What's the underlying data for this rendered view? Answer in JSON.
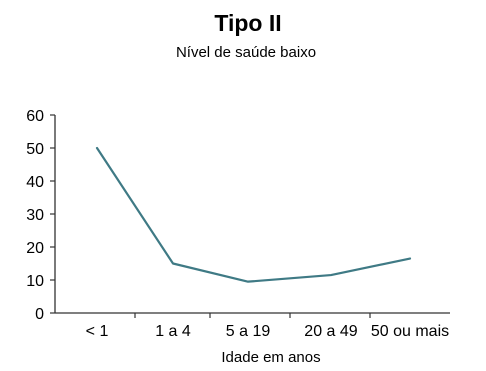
{
  "chart_data": {
    "type": "line",
    "title": "Tipo II",
    "subtitle": "Nível de saúde baixo",
    "xlabel": "Idade em anos",
    "ylabel": "",
    "categories": [
      "< 1",
      "1 a 4",
      "5 a 19",
      "20 a 49",
      "50 ou mais"
    ],
    "series": [
      {
        "values": [
          50,
          15,
          9.5,
          11.5,
          16.5
        ]
      }
    ],
    "ylim": [
      0,
      60
    ],
    "yticks": [
      "0",
      "10",
      "20",
      "30",
      "40",
      "50",
      "60"
    ],
    "grid": false,
    "line_color": "#3f7a85"
  }
}
